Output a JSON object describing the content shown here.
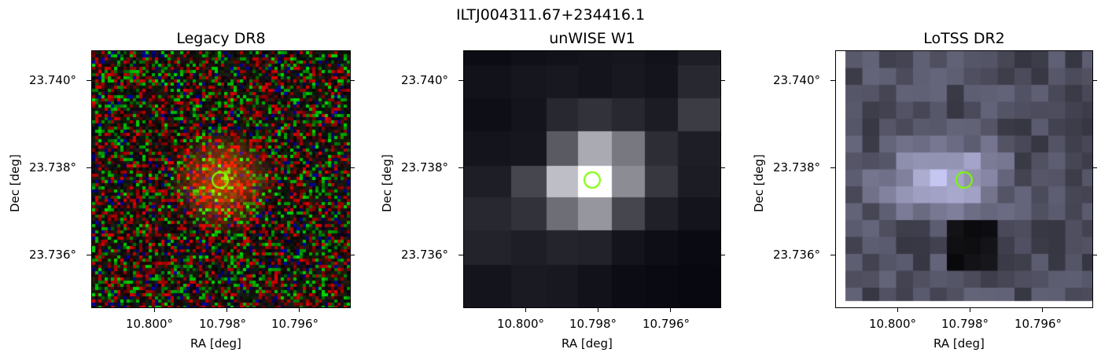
{
  "figure": {
    "title": "ILTJ004311.67+234416.1",
    "marker_color": "#7cfc00",
    "panels": [
      {
        "id": "legacy",
        "title": "Legacy DR8",
        "xlabel": "RA [deg]",
        "ylabel": "Dec [deg]",
        "xticks": [
          "10.800°",
          "10.798°",
          "10.796°"
        ],
        "yticks": [
          "23.740°",
          "23.738°",
          "23.736°"
        ],
        "image_kind": "rgb-noise"
      },
      {
        "id": "unwise",
        "title": "unWISE W1",
        "xlabel": "RA [deg]",
        "ylabel": "Dec [deg]",
        "xticks": [
          "10.800°",
          "10.798°",
          "10.796°"
        ],
        "yticks": [
          "23.740°",
          "23.738°",
          "23.736°"
        ],
        "image_kind": "gray-coarse"
      },
      {
        "id": "lotss",
        "title": "LoTSS DR2",
        "xlabel": "RA [deg]",
        "ylabel": "Dec [deg]",
        "xticks": [
          "10.800°",
          "10.798°",
          "10.796°"
        ],
        "yticks": [
          "23.740°",
          "23.738°",
          "23.736°"
        ],
        "image_kind": "gray-fine"
      }
    ]
  }
}
